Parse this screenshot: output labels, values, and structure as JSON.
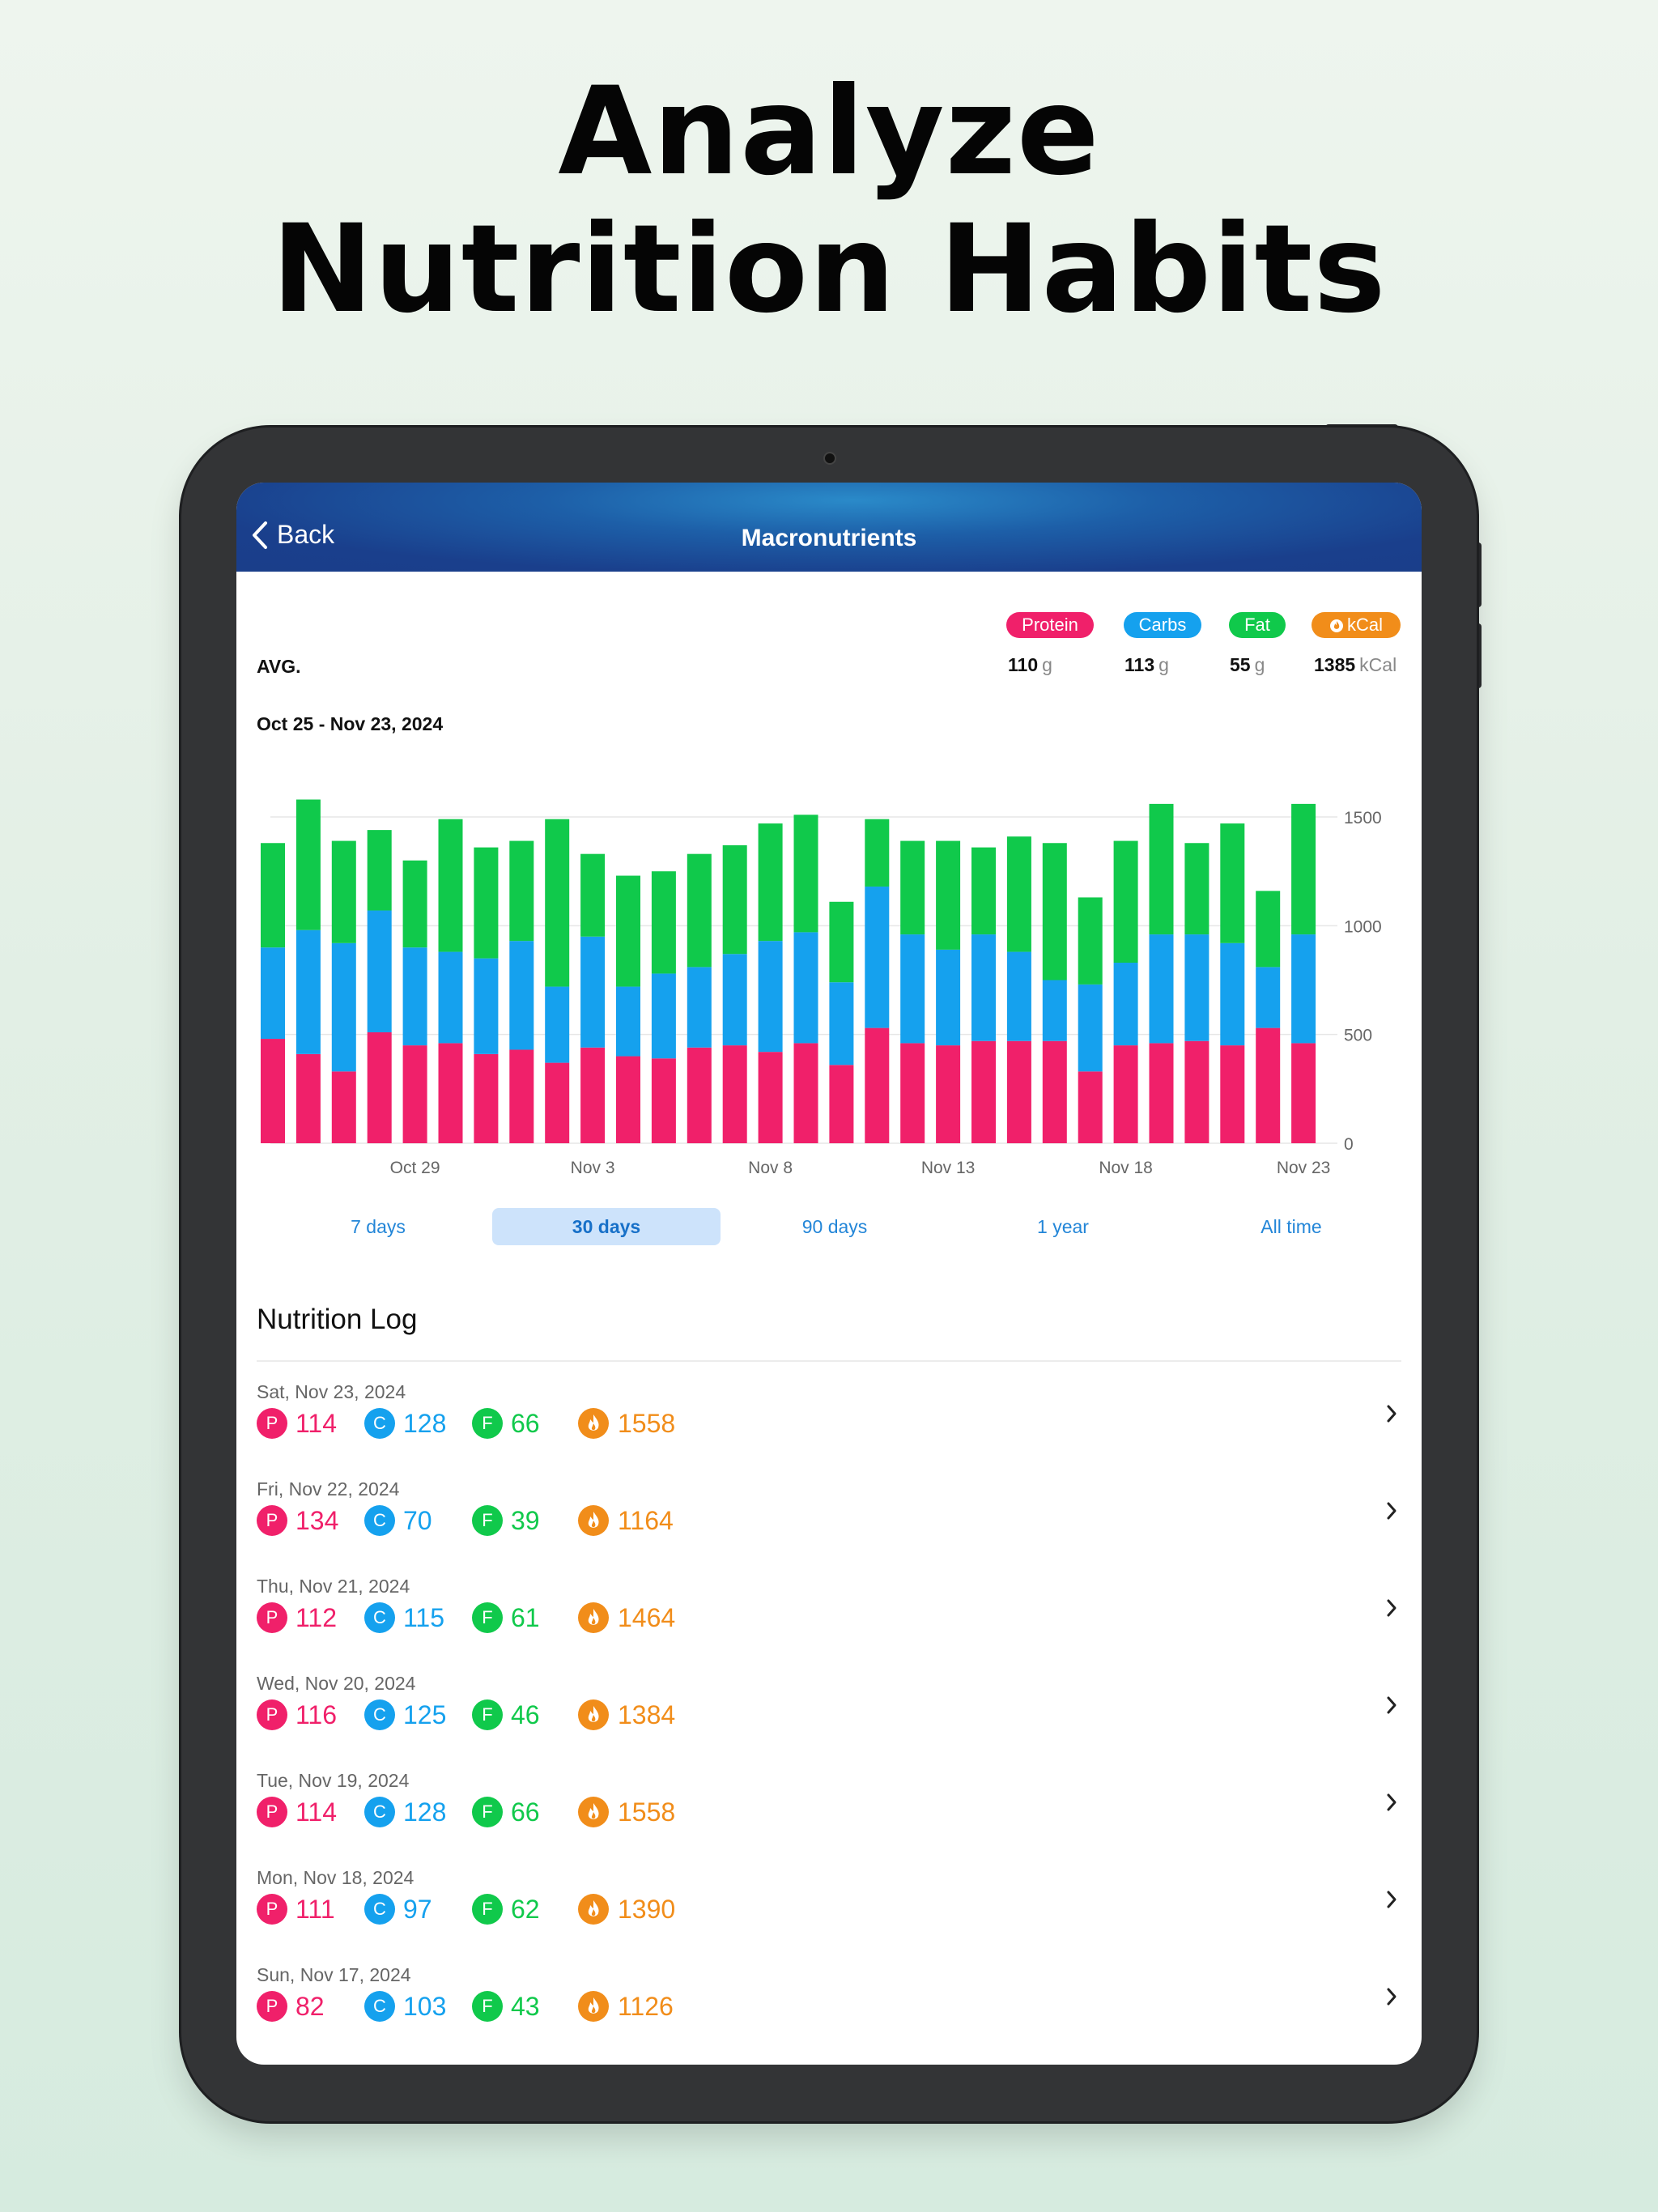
{
  "headline": {
    "line1": "Analyze",
    "line2": "Nutrition Habits"
  },
  "navbar": {
    "back_label": "Back",
    "title": "Macronutrients"
  },
  "colors": {
    "protein": "#f0206a",
    "carbs": "#15a1ee",
    "fat": "#10c94b",
    "kcal": "#f18d1a",
    "accent": "#2386d8"
  },
  "legend": {
    "protein": "Protein",
    "carbs": "Carbs",
    "fat": "Fat",
    "kcal": "kCal"
  },
  "avg": {
    "label": "AVG.",
    "protein": {
      "value": "110",
      "unit": "g"
    },
    "carbs": {
      "value": "113",
      "unit": "g"
    },
    "fat": {
      "value": "55",
      "unit": "g"
    },
    "kcal": {
      "value": "1385",
      "unit": "kCal"
    }
  },
  "date_range": "Oct 25 - Nov 23, 2024",
  "chart_data": {
    "type": "bar",
    "stacked": true,
    "categories": [
      "Oct 25",
      "Oct 26",
      "Oct 27",
      "Oct 28",
      "Oct 29",
      "Oct 30",
      "Oct 31",
      "Nov 1",
      "Nov 2",
      "Nov 3",
      "Nov 4",
      "Nov 5",
      "Nov 6",
      "Nov 7",
      "Nov 8",
      "Nov 9",
      "Nov 10",
      "Nov 11",
      "Nov 12",
      "Nov 13",
      "Nov 14",
      "Nov 15",
      "Nov 16",
      "Nov 17",
      "Nov 18",
      "Nov 19",
      "Nov 20",
      "Nov 21",
      "Nov 22",
      "Nov 23"
    ],
    "series": [
      {
        "name": "Protein",
        "values": [
          480,
          410,
          330,
          510,
          450,
          460,
          410,
          430,
          370,
          440,
          400,
          390,
          440,
          450,
          420,
          460,
          360,
          530,
          460,
          450,
          470,
          470,
          470,
          330,
          450,
          460,
          470,
          450,
          530,
          460
        ]
      },
      {
        "name": "Carbs",
        "values": [
          420,
          570,
          590,
          560,
          450,
          420,
          440,
          500,
          350,
          510,
          320,
          390,
          370,
          420,
          510,
          510,
          380,
          650,
          500,
          440,
          490,
          410,
          280,
          400,
          380,
          500,
          490,
          470,
          280,
          500
        ]
      },
      {
        "name": "Fat",
        "values": [
          480,
          600,
          470,
          370,
          400,
          610,
          510,
          460,
          770,
          380,
          510,
          470,
          520,
          500,
          540,
          540,
          370,
          310,
          430,
          500,
          400,
          530,
          630,
          400,
          560,
          600,
          420,
          550,
          350,
          600
        ]
      }
    ],
    "x_tick_labels": [
      "Oct 29",
      "Nov 3",
      "Nov 8",
      "Nov 13",
      "Nov 18",
      "Nov 23"
    ],
    "y_tick_labels": [
      "0",
      "500",
      "1000",
      "1500"
    ],
    "ylim": [
      0,
      1650
    ],
    "grid": true,
    "y_axis_side": "right"
  },
  "range_tabs": [
    {
      "label": "7 days",
      "active": false
    },
    {
      "label": "30 days",
      "active": true
    },
    {
      "label": "90 days",
      "active": false
    },
    {
      "label": "1 year",
      "active": false
    },
    {
      "label": "All time",
      "active": false
    }
  ],
  "log": {
    "title": "Nutrition Log",
    "badge_letters": {
      "protein": "P",
      "carbs": "C",
      "fat": "F"
    },
    "entries": [
      {
        "date": "Sat, Nov 23, 2024",
        "protein": "114",
        "carbs": "128",
        "fat": "66",
        "kcal": "1558"
      },
      {
        "date": "Fri, Nov 22, 2024",
        "protein": "134",
        "carbs": "70",
        "fat": "39",
        "kcal": "1164"
      },
      {
        "date": "Thu, Nov 21, 2024",
        "protein": "112",
        "carbs": "115",
        "fat": "61",
        "kcal": "1464"
      },
      {
        "date": "Wed, Nov 20, 2024",
        "protein": "116",
        "carbs": "125",
        "fat": "46",
        "kcal": "1384"
      },
      {
        "date": "Tue, Nov 19, 2024",
        "protein": "114",
        "carbs": "128",
        "fat": "66",
        "kcal": "1558"
      },
      {
        "date": "Mon, Nov 18, 2024",
        "protein": "111",
        "carbs": "97",
        "fat": "62",
        "kcal": "1390"
      },
      {
        "date": "Sun, Nov 17, 2024",
        "protein": "82",
        "carbs": "103",
        "fat": "43",
        "kcal": "1126"
      }
    ]
  }
}
